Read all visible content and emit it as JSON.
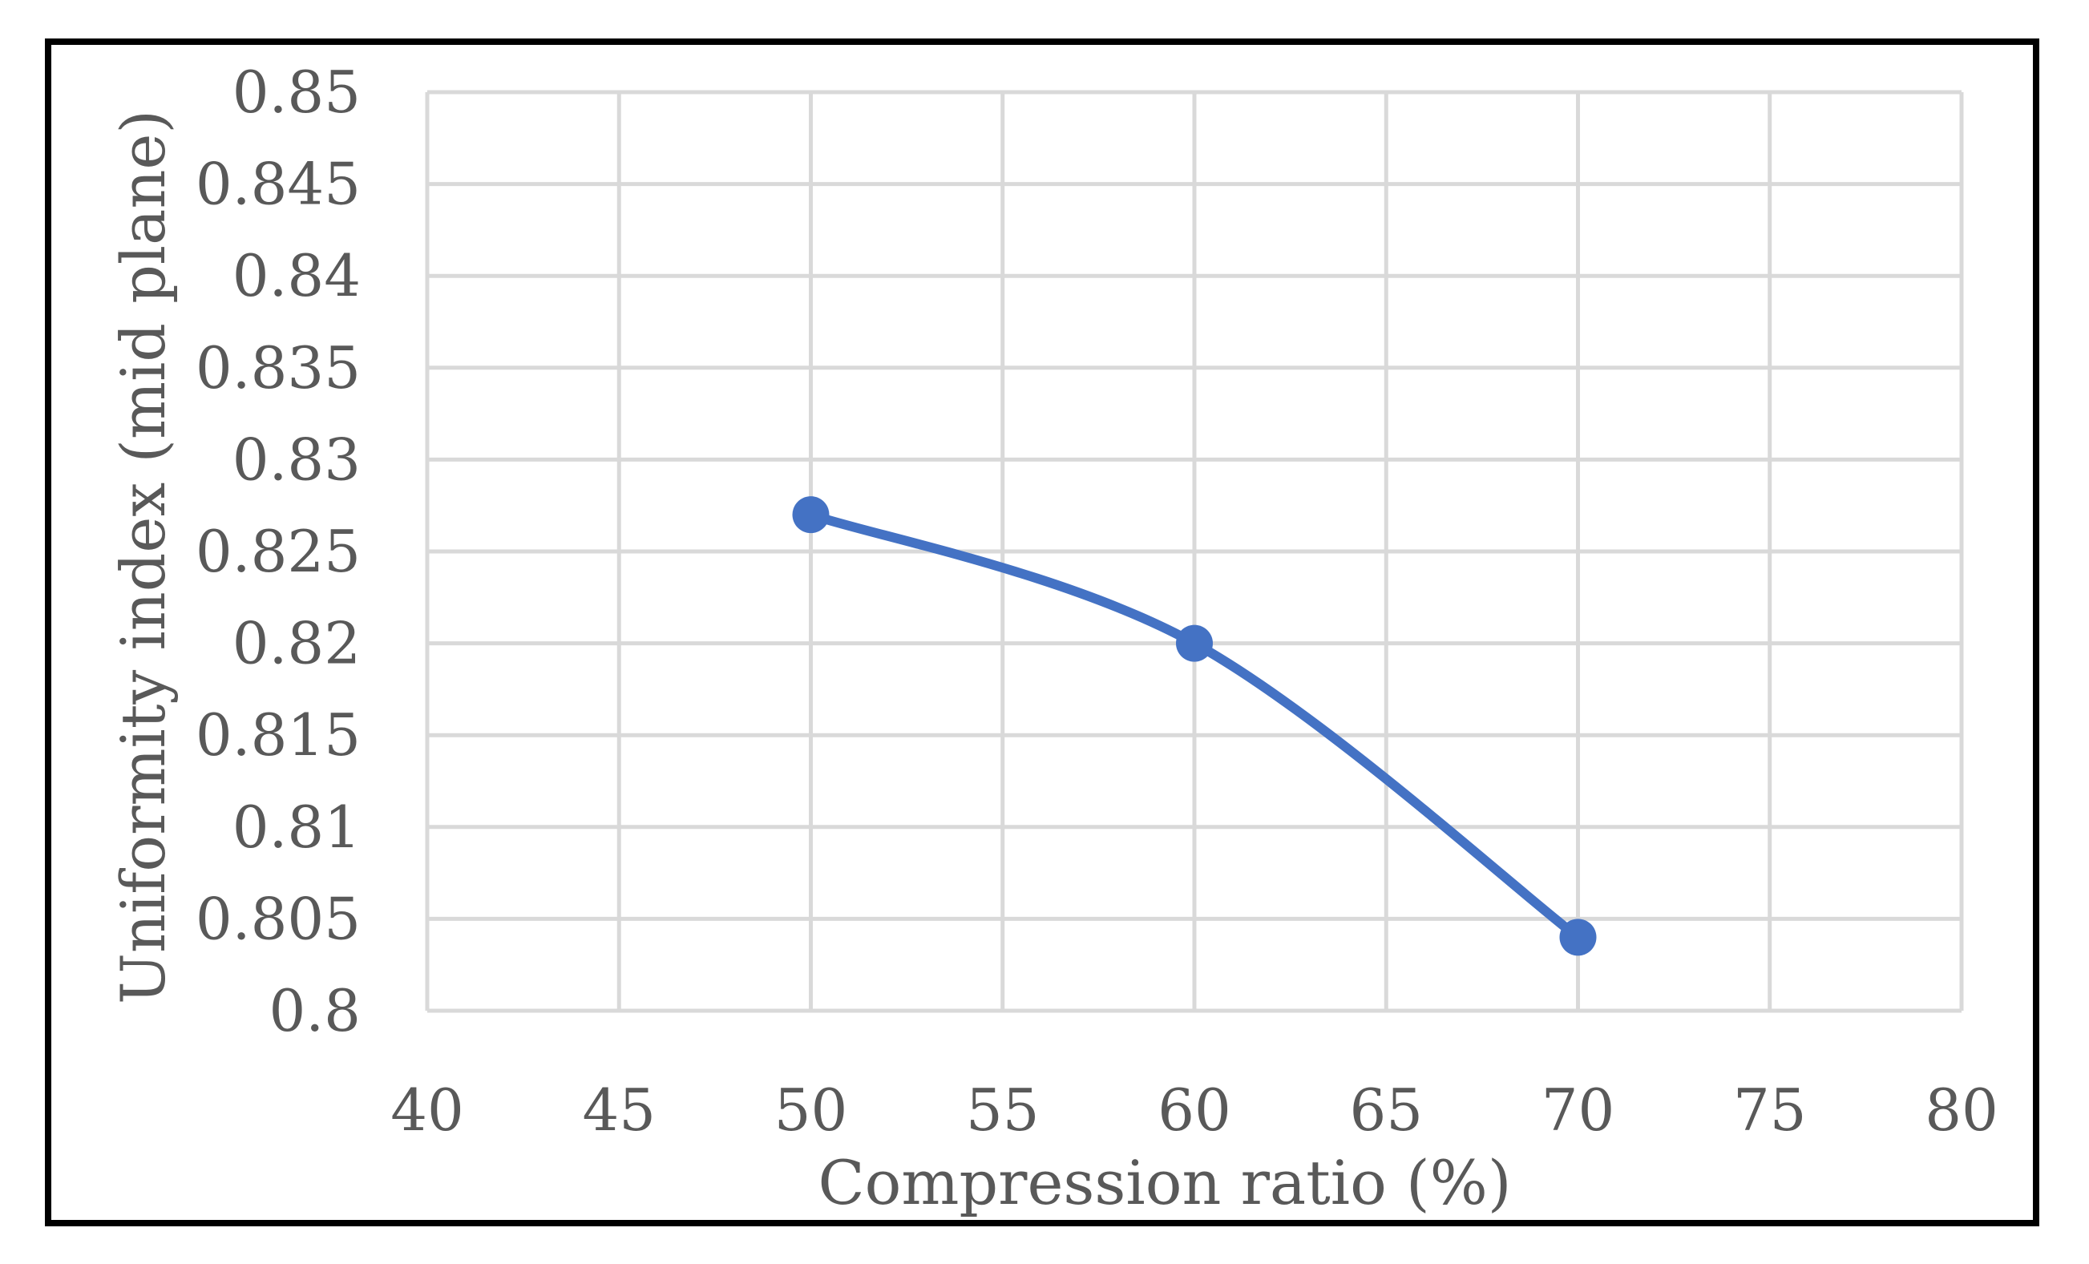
{
  "chart_data": {
    "type": "line",
    "title": "",
    "xlabel": "Compression ratio (%)",
    "ylabel": "Uniformity index (mid plane)",
    "xlim": [
      40,
      80
    ],
    "ylim": [
      0.8,
      0.85
    ],
    "x_ticks": [
      "40",
      "45",
      "50",
      "55",
      "60",
      "65",
      "70",
      "75",
      "80"
    ],
    "y_ticks": [
      "0.8",
      "0.805",
      "0.81",
      "0.815",
      "0.82",
      "0.825",
      "0.83",
      "0.835",
      "0.84",
      "0.845",
      "0.85"
    ],
    "grid": true,
    "legend": "none",
    "smooth": true,
    "series": [
      {
        "name": "Uniformity index",
        "color": "#4472C4",
        "x": [
          50,
          60,
          70
        ],
        "y": [
          0.827,
          0.82,
          0.804
        ]
      }
    ],
    "grid_color": "#D9D9D9",
    "text_color": "#595959"
  }
}
